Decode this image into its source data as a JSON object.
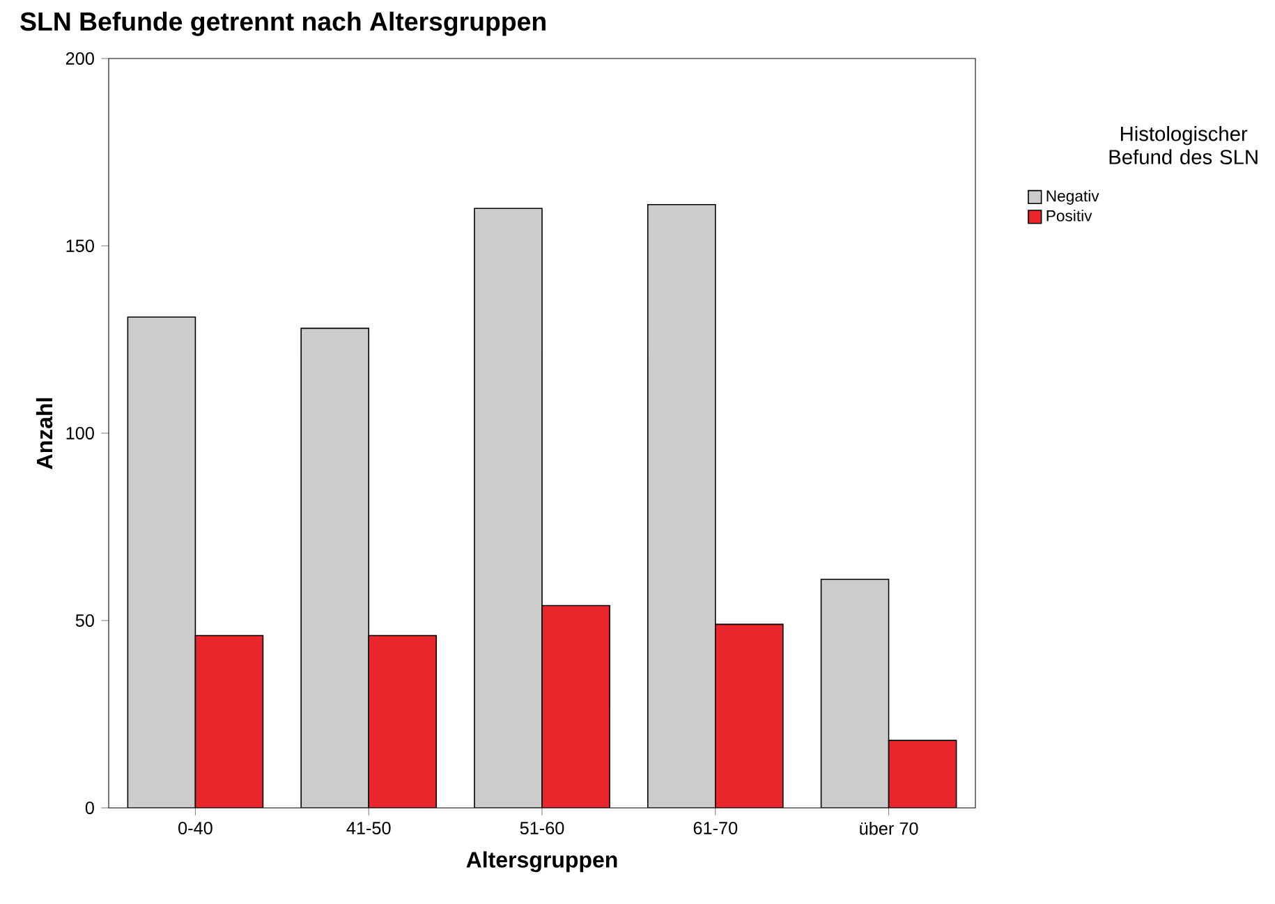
{
  "chart_data": {
    "type": "bar",
    "title": "SLN Befunde getrennt nach Altersgruppen",
    "xlabel": "Altersgruppen",
    "ylabel": "Anzahl",
    "legend_title": "Histologischer Befund des SLN",
    "categories": [
      "0-40",
      "41-50",
      "51-60",
      "61-70",
      "über 70"
    ],
    "series": [
      {
        "name": "Negativ",
        "color": "#cccccc",
        "values": [
          131,
          128,
          160,
          161,
          61
        ]
      },
      {
        "name": "Positiv",
        "color": "#e8262c",
        "values": [
          46,
          46,
          54,
          49,
          18
        ]
      }
    ],
    "ylim": [
      0,
      200
    ],
    "yticks": [
      0,
      50,
      100,
      150,
      200
    ],
    "grid": false,
    "legend": "top right"
  }
}
